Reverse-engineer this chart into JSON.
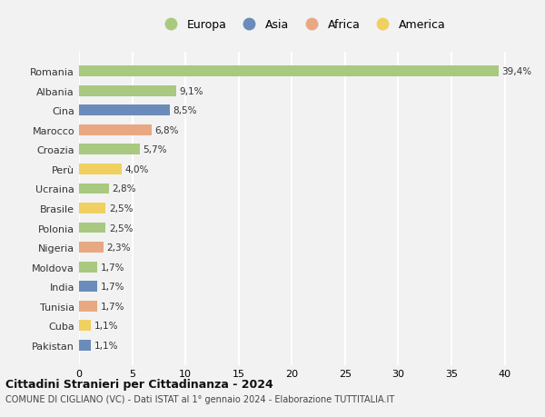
{
  "countries": [
    "Romania",
    "Albania",
    "Cina",
    "Marocco",
    "Croazia",
    "Perù",
    "Ucraina",
    "Brasile",
    "Polonia",
    "Nigeria",
    "Moldova",
    "India",
    "Tunisia",
    "Cuba",
    "Pakistan"
  ],
  "values": [
    39.4,
    9.1,
    8.5,
    6.8,
    5.7,
    4.0,
    2.8,
    2.5,
    2.5,
    2.3,
    1.7,
    1.7,
    1.7,
    1.1,
    1.1
  ],
  "labels": [
    "39,4%",
    "9,1%",
    "8,5%",
    "6,8%",
    "5,7%",
    "4,0%",
    "2,8%",
    "2,5%",
    "2,5%",
    "2,3%",
    "1,7%",
    "1,7%",
    "1,7%",
    "1,1%",
    "1,1%"
  ],
  "continents": [
    "Europa",
    "Europa",
    "Asia",
    "Africa",
    "Europa",
    "America",
    "Europa",
    "America",
    "Europa",
    "Africa",
    "Europa",
    "Asia",
    "Africa",
    "America",
    "Asia"
  ],
  "colors": {
    "Europa": "#a8c97f",
    "Asia": "#6b8cba",
    "Africa": "#e8a882",
    "America": "#f0d060"
  },
  "legend_order": [
    "Europa",
    "Asia",
    "Africa",
    "America"
  ],
  "xlim": [
    0,
    42
  ],
  "xticks": [
    0,
    5,
    10,
    15,
    20,
    25,
    30,
    35,
    40
  ],
  "title": "Cittadini Stranieri per Cittadinanza - 2024",
  "subtitle": "COMUNE DI CIGLIANO (VC) - Dati ISTAT al 1° gennaio 2024 - Elaborazione TUTTITALIA.IT",
  "bg_color": "#f2f2f2",
  "grid_color": "#ffffff",
  "bar_height": 0.55
}
